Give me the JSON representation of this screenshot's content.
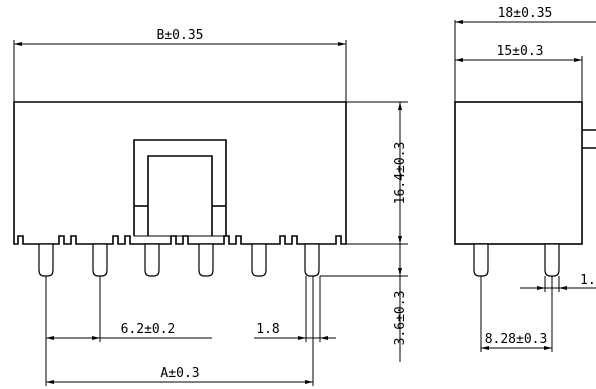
{
  "front_view": {
    "overall_width_label": "B±0.35",
    "pitch_label": "6.2±0.2",
    "pin_width_label": "1.8",
    "pin_span_label": "A±0.3",
    "body_height_label": "16.4±0.3",
    "pin_length_label": "3.6±0.3"
  },
  "side_view": {
    "outer_depth_label": "18±0.35",
    "body_depth_label": "15±0.3",
    "row_spacing_label": "8.28±0.3",
    "pin_label_partial": "1."
  }
}
